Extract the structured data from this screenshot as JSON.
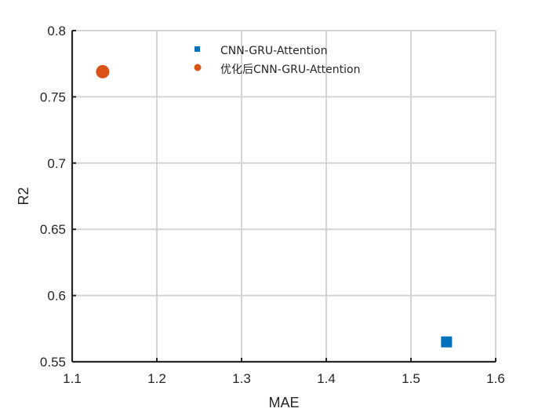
{
  "chart_data": {
    "type": "scatter",
    "xlabel": "MAE",
    "ylabel": "R2",
    "xlim": [
      1.1,
      1.6
    ],
    "ylim": [
      0.55,
      0.8
    ],
    "xticks": [
      "1.1",
      "1.2",
      "1.3",
      "1.4",
      "1.5",
      "1.6"
    ],
    "yticks": [
      "0.55",
      "0.6",
      "0.65",
      "0.7",
      "0.75",
      "0.8"
    ],
    "grid": true,
    "legend_position": "top",
    "series": [
      {
        "name": "CNN-GRU-Attention",
        "marker": "square",
        "color": "#0072BD",
        "points": [
          {
            "x": 1.542,
            "y": 0.565
          }
        ]
      },
      {
        "name": "优化后CNN-GRU-Attention",
        "marker": "circle",
        "color": "#D95319",
        "points": [
          {
            "x": 1.136,
            "y": 0.769
          }
        ]
      }
    ]
  }
}
